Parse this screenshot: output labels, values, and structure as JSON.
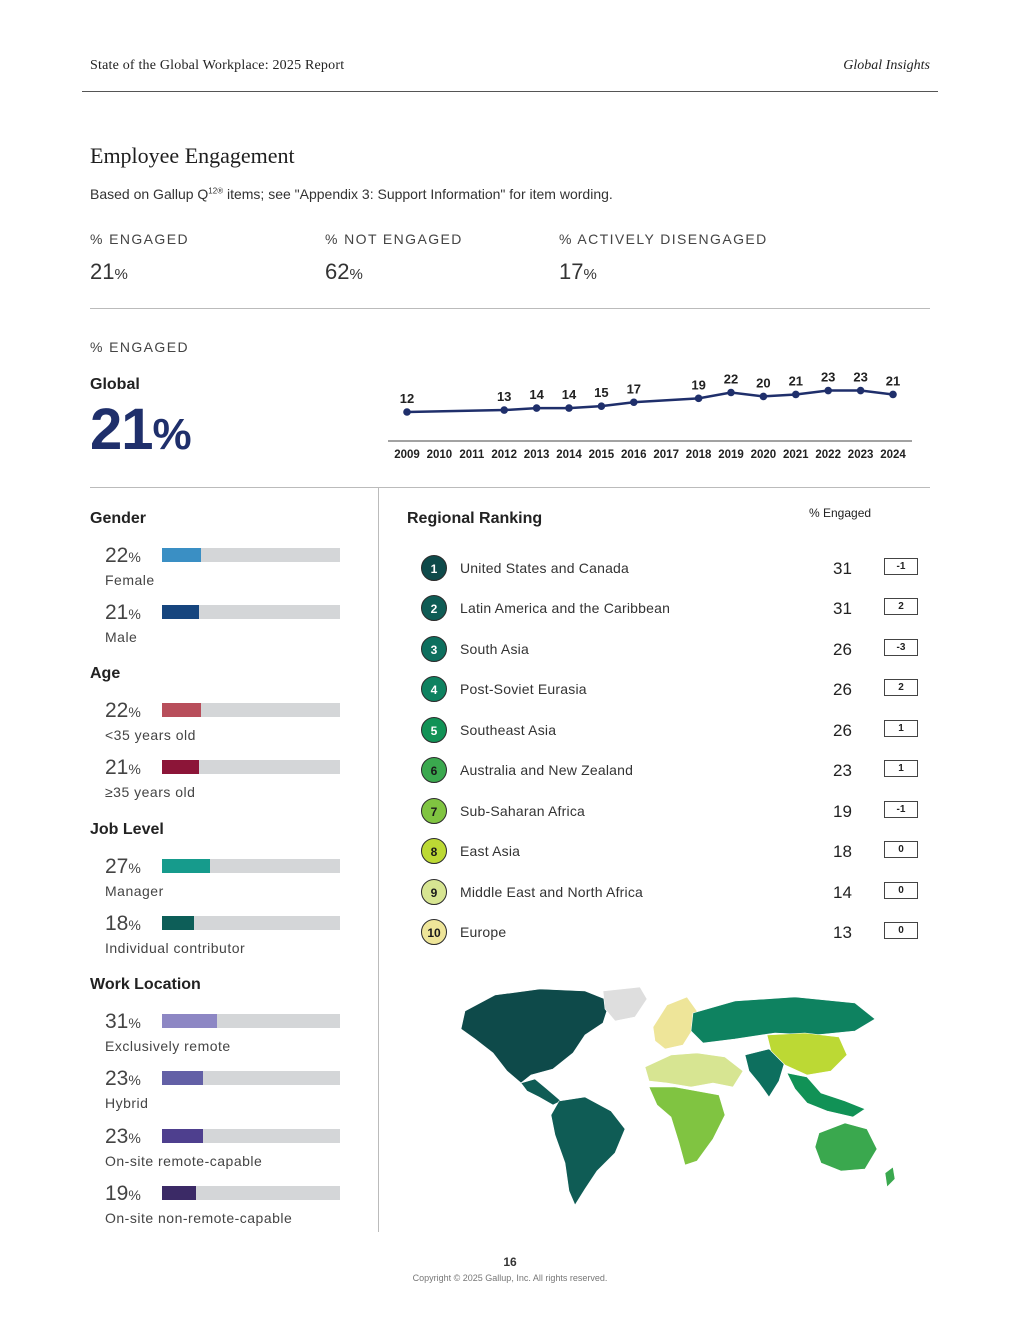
{
  "header": {
    "report_title": "State of the Global Workplace: 2025 Report",
    "section": "Global Insights"
  },
  "page_title": "Employee Engagement",
  "subtitle": {
    "before": "Based on Gallup Q",
    "sup": "12®",
    "after": " items; see \"Appendix 3: Support Information\" for item wording."
  },
  "summary": [
    {
      "label": "% ENGAGED",
      "value": "21",
      "unit": "%"
    },
    {
      "label": "% NOT ENGAGED",
      "value": "62",
      "unit": "%"
    },
    {
      "label": "% ACTIVELY DISENGAGED",
      "value": "17",
      "unit": "%"
    }
  ],
  "engaged_section": {
    "label": "% ENGAGED",
    "global_label": "Global",
    "global_value": "21",
    "global_unit": "%"
  },
  "chart_data": {
    "type": "line",
    "x": [
      "2009",
      "2010",
      "2011",
      "2012",
      "2013",
      "2014",
      "2015",
      "2016",
      "2017",
      "2018",
      "2019",
      "2020",
      "2021",
      "2022",
      "2023",
      "2024"
    ],
    "series": [
      {
        "values": [
          12,
          null,
          null,
          13,
          14,
          14,
          15,
          17,
          null,
          19,
          22,
          20,
          21,
          23,
          23,
          21
        ]
      }
    ],
    "title": "",
    "xlabel": "",
    "ylabel": "",
    "ylim": [
      0,
      25
    ],
    "color": "#1f2f6b"
  },
  "demographics": {
    "gender": {
      "title": "Gender",
      "items": [
        {
          "value": "22",
          "unit": "%",
          "label": "Female",
          "pct": 22,
          "color": "#3a8fc4"
        },
        {
          "value": "21",
          "unit": "%",
          "label": "Male",
          "pct": 21,
          "color": "#16457e"
        }
      ]
    },
    "age": {
      "title": "Age",
      "items": [
        {
          "value": "22",
          "unit": "%",
          "label": "<35 years old",
          "pct": 22,
          "color": "#b84e5b"
        },
        {
          "value": "21",
          "unit": "%",
          "label": "≥35 years old",
          "pct": 21,
          "color": "#8c1538"
        }
      ]
    },
    "job_level": {
      "title": "Job Level",
      "items": [
        {
          "value": "27",
          "unit": "%",
          "label": "Manager",
          "pct": 27,
          "color": "#169b8c"
        },
        {
          "value": "18",
          "unit": "%",
          "label": "Individual contributor",
          "pct": 18,
          "color": "#0d5e58"
        }
      ]
    },
    "work_location": {
      "title": "Work Location",
      "items": [
        {
          "value": "31",
          "unit": "%",
          "label": "Exclusively remote",
          "pct": 31,
          "color": "#8d87c4"
        },
        {
          "value": "23",
          "unit": "%",
          "label": "Hybrid",
          "pct": 23,
          "color": "#6360a6"
        },
        {
          "value": "23",
          "unit": "%",
          "label": "On-site remote-capable",
          "pct": 23,
          "color": "#4e3f8e"
        },
        {
          "value": "19",
          "unit": "%",
          "label": "On-site non-remote-capable",
          "pct": 19,
          "color": "#3b2a66"
        }
      ]
    }
  },
  "regional_ranking": {
    "title": "Regional Ranking",
    "col_header": "% Engaged",
    "rows": [
      {
        "rank": "1",
        "name": "United States and Canada",
        "value": "31",
        "change": "-1",
        "color": "#0e4a4a",
        "text_color": "#ffffff"
      },
      {
        "rank": "2",
        "name": "Latin America and the Caribbean",
        "value": "31",
        "change": "2",
        "color": "#0f5c55",
        "text_color": "#ffffff"
      },
      {
        "rank": "3",
        "name": "South Asia",
        "value": "26",
        "change": "-3",
        "color": "#0d6f5e",
        "text_color": "#ffffff"
      },
      {
        "rank": "4",
        "name": "Post-Soviet Eurasia",
        "value": "26",
        "change": "2",
        "color": "#0e8260",
        "text_color": "#ffffff"
      },
      {
        "rank": "5",
        "name": "Southeast Asia",
        "value": "26",
        "change": "1",
        "color": "#119256",
        "text_color": "#ffffff"
      },
      {
        "rank": "6",
        "name": "Australia and New Zealand",
        "value": "23",
        "change": "1",
        "color": "#3aa84e",
        "text_color": "#1a1a1a"
      },
      {
        "rank": "7",
        "name": "Sub-Saharan Africa",
        "value": "19",
        "change": "-1",
        "color": "#80c441",
        "text_color": "#1a1a1a"
      },
      {
        "rank": "8",
        "name": "East Asia",
        "value": "18",
        "change": "0",
        "color": "#bcd934",
        "text_color": "#1a1a1a"
      },
      {
        "rank": "9",
        "name": "Middle East and North Africa",
        "value": "14",
        "change": "0",
        "color": "#d7e592",
        "text_color": "#1a1a1a"
      },
      {
        "rank": "10",
        "name": "Europe",
        "value": "13",
        "change": "0",
        "color": "#eee599",
        "text_color": "#1a1a1a"
      }
    ]
  },
  "footer": {
    "page": "16",
    "copyright": "Copyright © 2025 Gallup, Inc. All rights reserved."
  }
}
